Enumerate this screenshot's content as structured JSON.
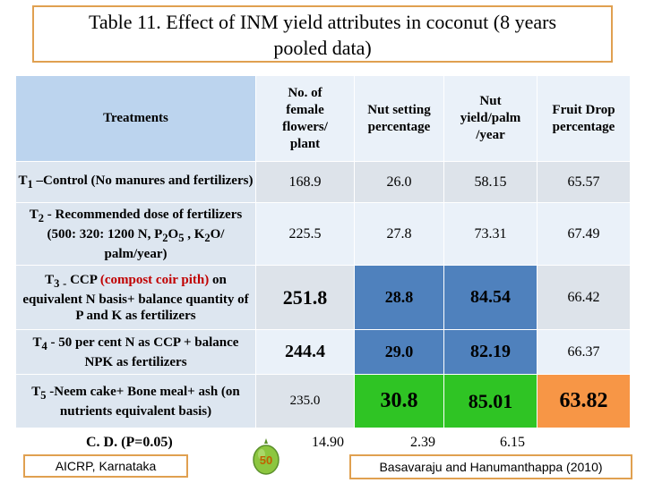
{
  "title_line1": "Table 11. Effect of INM yield attributes in coconut (8 years",
  "title_line2": "pooled data)",
  "headers": {
    "treatments": "Treatments",
    "female_flowers": [
      "No. of",
      "female",
      "flowers/",
      "plant"
    ],
    "nut_setting": [
      "Nut setting",
      "percentage"
    ],
    "nut_yield": [
      "Nut",
      "yield/palm",
      "/year"
    ],
    "fruit_drop": [
      "Fruit Drop",
      "percentage"
    ]
  },
  "rows": [
    {
      "treatment": {
        "a": "T",
        "sub": "1",
        "b": " –Control (No manures and fertilizers)"
      },
      "female_flowers": "168.9",
      "nut_setting": "26.0",
      "nut_yield": "58.15",
      "fruit_drop": "65.57"
    },
    {
      "treatment": {
        "a": "T",
        "sub": "2",
        "b": "  - Recommended dose of fertilizers (500: 320: 1200  N, P",
        "sub2": "2",
        "c": "O",
        "sub3": "5",
        "d": " , K",
        "sub4": "2",
        "e": "O/ palm/year)"
      },
      "female_flowers": "225.5",
      "nut_setting": "27.8",
      "nut_yield": "73.31",
      "fruit_drop": "67.49"
    },
    {
      "treatment": {
        "a": "T",
        "sub": "3",
        "b": " ",
        "sub2": "-",
        "c": " CCP ",
        "red": "(compost coir pith)",
        "d": " on equivalent N basis+ balance quantity of P and K as fertilizers"
      },
      "female_flowers": "251.8",
      "nut_setting": "28.8",
      "nut_yield": "84.54",
      "fruit_drop": "66.42"
    },
    {
      "treatment": {
        "a": "T",
        "sub": "4",
        "b": "  - 50 per cent N as CCP + balance  NPK as fertilizers"
      },
      "female_flowers": "244.4",
      "nut_setting": "29.0",
      "nut_yield": "82.19",
      "fruit_drop": "66.37"
    },
    {
      "treatment": {
        "a": "T",
        "sub": "5",
        "b": " -Neem cake+ Bone meal+ ash (on nutrients equivalent basis)"
      },
      "female_flowers": "235.0",
      "nut_setting": "30.8",
      "nut_yield": "85.01",
      "fruit_drop": "63.82"
    }
  ],
  "cd": {
    "label": "C. D. (P=0.05)",
    "female_flowers": "14.90",
    "nut_setting": "2.39",
    "nut_yield": "6.15"
  },
  "footer_left": "AICRP,  Karnataka",
  "page_number": "50",
  "footer_right": "Basavaraju and Hanumanthappa (2010)",
  "colors": {
    "header_treatments": "#bcd4ee",
    "highlight_blue": "#4f81bd",
    "highlight_green": "#2fc424",
    "highlight_orange": "#f79646",
    "box_border": "#e0a050",
    "red_text": "#c00000"
  }
}
